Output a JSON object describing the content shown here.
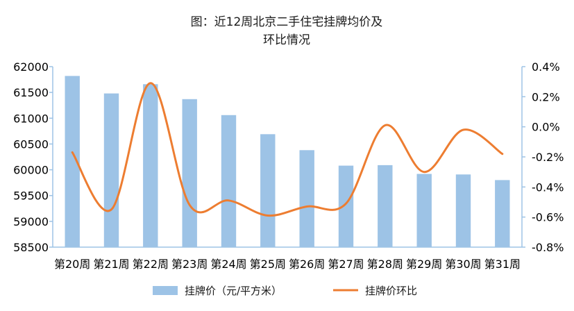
{
  "chart_data": {
    "type": "bar",
    "title_lines": [
      "图：近12周北京二手住宅挂牌均价及",
      "环比情况"
    ],
    "categories": [
      "第20周",
      "第21周",
      "第22周",
      "第23周",
      "第24周",
      "第25周",
      "第26周",
      "第27周",
      "第28周",
      "第29周",
      "第30周",
      "第31周"
    ],
    "y_left": {
      "min": 58500,
      "max": 62000,
      "step": 500,
      "ticks": [
        "62000",
        "61500",
        "61000",
        "60500",
        "60000",
        "59500",
        "59000",
        "58500"
      ]
    },
    "y_right": {
      "min": -0.8,
      "max": 0.4,
      "step": 0.2,
      "ticks": [
        "0.4%",
        "0.2%",
        "0.0%",
        "-0.2%",
        "-0.4%",
        "-0.6%",
        "-0.8%"
      ]
    },
    "series": [
      {
        "name": "挂牌价（元/平方米）",
        "type": "bar",
        "axis": "left",
        "color": "#9dc3e6",
        "values": [
          61820,
          61480,
          61660,
          61370,
          61060,
          60690,
          60380,
          60080,
          60090,
          59920,
          59910,
          59800
        ]
      },
      {
        "name": "挂牌价环比",
        "type": "line",
        "axis": "right",
        "smooth": true,
        "color": "#ed7d31",
        "values": [
          -0.17,
          -0.55,
          0.29,
          -0.52,
          -0.49,
          -0.59,
          -0.53,
          -0.51,
          0.01,
          -0.3,
          -0.02,
          -0.18
        ]
      }
    ],
    "legend_position": "bottom",
    "grid": false
  }
}
